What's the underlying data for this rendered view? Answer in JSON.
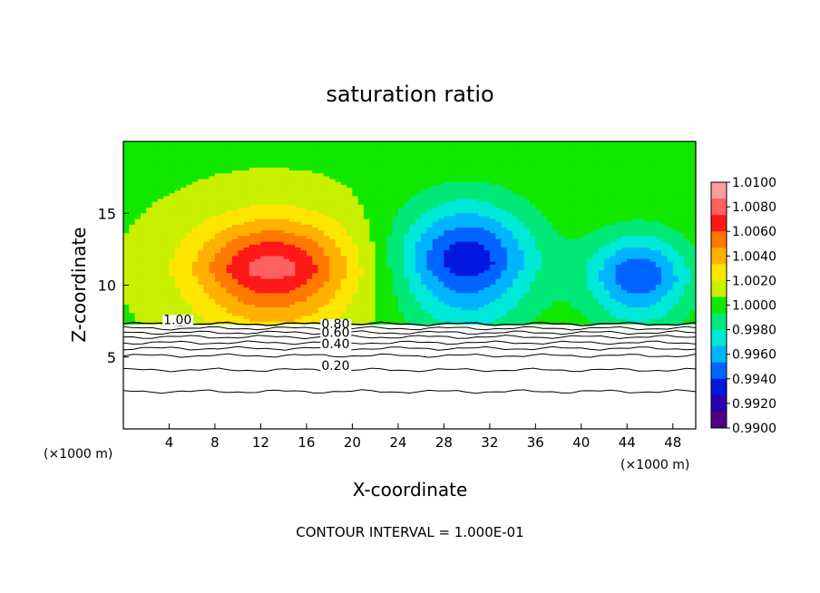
{
  "chart_data": {
    "type": "contour",
    "title": "saturation ratio",
    "xlabel": "X-coordinate",
    "ylabel": "Z-coordinate",
    "x_unit_left": "(×1000 m)",
    "x_unit_right": "(×1000 m)",
    "footer": "CONTOUR INTERVAL = 1.000E-01",
    "xlim": [
      0,
      50
    ],
    "ylim": [
      0,
      20
    ],
    "x_ticks": [
      4,
      8,
      12,
      16,
      20,
      24,
      28,
      32,
      36,
      40,
      44,
      48
    ],
    "x_tick_labels": [
      "4",
      "8",
      "12",
      "16",
      "20",
      "24",
      "28",
      "32",
      "36",
      "40",
      "44",
      "48"
    ],
    "y_ticks": [
      5,
      10,
      15
    ],
    "y_tick_labels": [
      "5",
      "10",
      "15"
    ],
    "colorbar": {
      "min": 0.99,
      "max": 1.01,
      "labels": [
        "1.0100",
        "1.0080",
        "1.0060",
        "1.0040",
        "1.0020",
        "1.0000",
        "0.9980",
        "0.9960",
        "0.9940",
        "0.9920",
        "0.9900"
      ],
      "colors": [
        "#ff9c9c",
        "#ff6060",
        "#ff1818",
        "#ff7800",
        "#ffb000",
        "#ffe600",
        "#c8f000",
        "#10e800",
        "#00e878",
        "#00e8d8",
        "#00b4ff",
        "#0064ff",
        "#0018e0",
        "#2800b0",
        "#500080"
      ]
    },
    "contour_labels": [
      {
        "text": "1.00",
        "x": 3.5,
        "y": 7.3
      },
      {
        "text": "0.80",
        "x": 17.3,
        "y": 7.0
      },
      {
        "text": "0.60",
        "x": 17.3,
        "y": 6.4
      },
      {
        "text": "0.40",
        "x": 17.3,
        "y": 5.6
      },
      {
        "text": "0.20",
        "x": 17.3,
        "y": 4.1
      }
    ],
    "cloud_regions": [
      {
        "center_x": 13,
        "top_z": 14,
        "base_z": 7.3,
        "value": 1.008
      },
      {
        "center_x": 30,
        "top_z": 15,
        "base_z": 7.3,
        "value": 0.993
      },
      {
        "center_x": 45,
        "top_z": 13,
        "base_z": 7.3,
        "value": 0.994
      }
    ],
    "ambient_value": 1.0005,
    "grid": false,
    "legend": "right"
  }
}
